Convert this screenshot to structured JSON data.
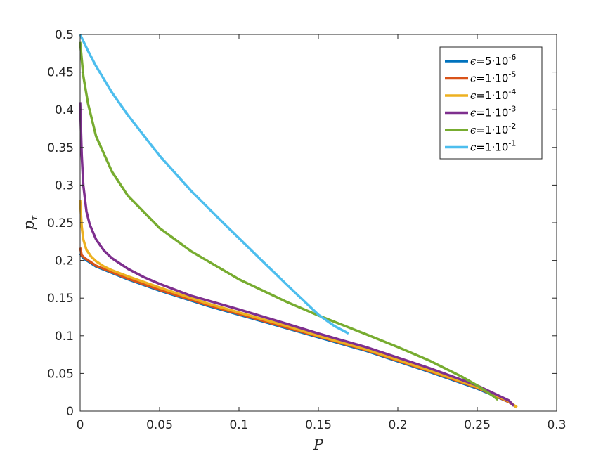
{
  "chart_data": {
    "type": "line",
    "xlabel": "P",
    "ylabel": "p",
    "ylabel_subscript": "τ",
    "xlim": [
      0,
      0.3
    ],
    "ylim": [
      0,
      0.5
    ],
    "xticks": [
      0,
      0.05,
      0.1,
      0.15,
      0.2,
      0.25,
      0.3
    ],
    "yticks": [
      0,
      0.05,
      0.1,
      0.15,
      0.2,
      0.25,
      0.3,
      0.35,
      0.4,
      0.45,
      0.5
    ],
    "xtick_labels": [
      "0",
      "0.05",
      "0.1",
      "0.15",
      "0.2",
      "0.25",
      "0.3"
    ],
    "ytick_labels": [
      "0",
      "0.05",
      "0.1",
      "0.15",
      "0.2",
      "0.25",
      "0.3",
      "0.35",
      "0.4",
      "0.45",
      "0.5"
    ],
    "grid": false,
    "legend_position": "top-right",
    "series": [
      {
        "name": "ϵ=5·10-6",
        "legend": {
          "symbol": "ϵ",
          "mantissa": "=5·10",
          "exponent": "-6"
        },
        "color": "#0072BD",
        "x": [
          0,
          0.002,
          0.01,
          0.03,
          0.05,
          0.08,
          0.1,
          0.13,
          0.15,
          0.18,
          0.2,
          0.22,
          0.25,
          0.27,
          0.275
        ],
        "y": [
          0.209,
          0.203,
          0.192,
          0.175,
          0.16,
          0.14,
          0.128,
          0.11,
          0.098,
          0.08,
          0.066,
          0.052,
          0.03,
          0.012,
          0.005
        ]
      },
      {
        "name": "ϵ=1·10-5",
        "legend": {
          "symbol": "ϵ",
          "mantissa": "=1·10",
          "exponent": "-5"
        },
        "color": "#D95319",
        "x": [
          0,
          0.001,
          0.003,
          0.01,
          0.03,
          0.05,
          0.08,
          0.1,
          0.13,
          0.15,
          0.18,
          0.2,
          0.22,
          0.25,
          0.27,
          0.275
        ],
        "y": [
          0.217,
          0.207,
          0.203,
          0.193,
          0.176,
          0.161,
          0.141,
          0.129,
          0.111,
          0.099,
          0.081,
          0.067,
          0.053,
          0.031,
          0.012,
          0.005
        ]
      },
      {
        "name": "ϵ=1·10-4",
        "legend": {
          "symbol": "ϵ",
          "mantissa": "=1·10",
          "exponent": "-4"
        },
        "color": "#EDB120",
        "x": [
          0,
          0.001,
          0.002,
          0.004,
          0.007,
          0.01,
          0.015,
          0.02,
          0.03,
          0.05,
          0.08,
          0.1,
          0.13,
          0.15,
          0.18,
          0.2,
          0.22,
          0.25,
          0.27,
          0.275
        ],
        "y": [
          0.28,
          0.245,
          0.228,
          0.214,
          0.205,
          0.199,
          0.192,
          0.187,
          0.179,
          0.164,
          0.143,
          0.131,
          0.113,
          0.1,
          0.082,
          0.068,
          0.054,
          0.032,
          0.013,
          0.005
        ]
      },
      {
        "name": "ϵ=1·10-3",
        "legend": {
          "symbol": "ϵ",
          "mantissa": "=1·10",
          "exponent": "-3"
        },
        "color": "#7E2F8E",
        "x": [
          0,
          0.001,
          0.002,
          0.004,
          0.006,
          0.01,
          0.015,
          0.02,
          0.03,
          0.04,
          0.05,
          0.07,
          0.1,
          0.13,
          0.15,
          0.18,
          0.2,
          0.22,
          0.25,
          0.27,
          0.273
        ],
        "y": [
          0.41,
          0.34,
          0.3,
          0.265,
          0.248,
          0.228,
          0.213,
          0.203,
          0.189,
          0.178,
          0.169,
          0.153,
          0.135,
          0.116,
          0.103,
          0.085,
          0.071,
          0.057,
          0.034,
          0.014,
          0.007
        ]
      },
      {
        "name": "ϵ=1·10-2",
        "legend": {
          "symbol": "ϵ",
          "mantissa": "=1·10",
          "exponent": "-2"
        },
        "color": "#77AC30",
        "x": [
          0,
          0.002,
          0.005,
          0.01,
          0.02,
          0.03,
          0.05,
          0.07,
          0.1,
          0.13,
          0.15,
          0.18,
          0.2,
          0.22,
          0.24,
          0.25,
          0.26,
          0.263
        ],
        "y": [
          0.49,
          0.445,
          0.408,
          0.365,
          0.318,
          0.286,
          0.243,
          0.212,
          0.175,
          0.145,
          0.127,
          0.102,
          0.085,
          0.067,
          0.046,
          0.034,
          0.02,
          0.015
        ]
      },
      {
        "name": "ϵ=1·10-1",
        "legend": {
          "symbol": "ϵ",
          "mantissa": "=1·10",
          "exponent": "-1"
        },
        "color": "#4DBEEE",
        "x": [
          0,
          0.005,
          0.01,
          0.02,
          0.03,
          0.05,
          0.07,
          0.09,
          0.11,
          0.13,
          0.15,
          0.16,
          0.169
        ],
        "y": [
          0.5,
          0.478,
          0.458,
          0.423,
          0.393,
          0.339,
          0.292,
          0.25,
          0.209,
          0.168,
          0.128,
          0.113,
          0.103
        ]
      }
    ]
  }
}
